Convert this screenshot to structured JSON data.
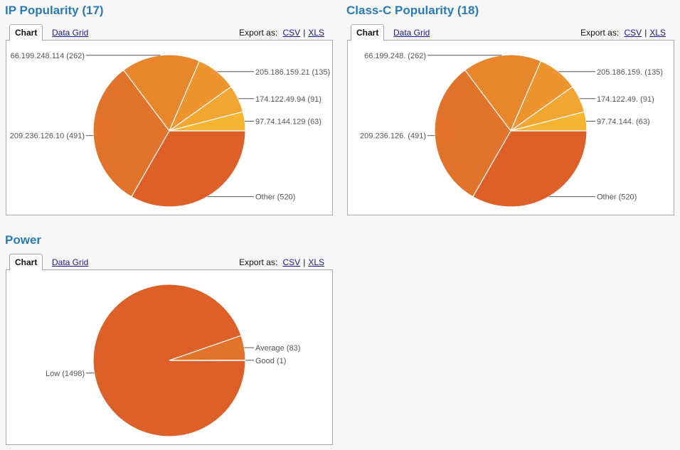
{
  "tabs": {
    "chart": "Chart",
    "grid": "Data Grid",
    "export_label": "Export as:",
    "csv": "CSV",
    "sep": "|",
    "xls": "XLS"
  },
  "chart_data": [
    {
      "type": "pie",
      "title": "IP Popularity (17)",
      "labels": [
        "Other",
        "209.236.126.10",
        "66.199.248.114",
        "205.186.159.21",
        "174.122.49.94",
        "97.74.144.129"
      ],
      "values": [
        520,
        491,
        262,
        135,
        91,
        63
      ],
      "colors": [
        "#dc6027",
        "#e2732a",
        "#e8862c",
        "#ec952e",
        "#f0a630",
        "#f5b532"
      ]
    },
    {
      "type": "pie",
      "title": "Class-C Popularity (18)",
      "labels": [
        "Other",
        "209.236.126.",
        "66.199.248.",
        "205.186.159.",
        "174.122.49.",
        "97.74.144."
      ],
      "values": [
        520,
        491,
        262,
        135,
        91,
        63
      ],
      "colors": [
        "#dc6027",
        "#e2732a",
        "#e8862c",
        "#ec952e",
        "#f0a630",
        "#f5b532"
      ]
    },
    {
      "type": "pie",
      "title": "Power",
      "labels": [
        "Low",
        "Average",
        "Good"
      ],
      "values": [
        1498,
        83,
        1
      ],
      "colors": [
        "#dc6027",
        "#e2732a",
        "#e8862c"
      ]
    }
  ]
}
